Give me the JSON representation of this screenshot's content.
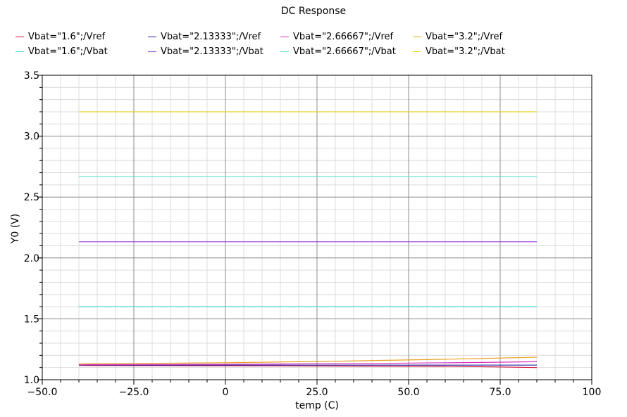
{
  "chart_data": {
    "type": "line",
    "title": "DC Response",
    "xlabel": "temp (C)",
    "ylabel": "Y0 (V)",
    "xlim": [
      -50,
      100
    ],
    "ylim": [
      1.0,
      3.5
    ],
    "x_major_ticks": [
      -50,
      -25,
      0,
      25,
      50,
      75,
      100
    ],
    "x_tick_labels": [
      "−50.0",
      "−25.0",
      "0",
      "25.0",
      "50.0",
      "75.0",
      "100"
    ],
    "y_major_ticks": [
      1.0,
      1.5,
      2.0,
      2.5,
      3.0,
      3.5
    ],
    "y_tick_labels": [
      "1.0",
      "1.5",
      "2.0",
      "2.5",
      "3.0",
      "3.5"
    ],
    "grid": true,
    "legend_position": "top",
    "series": [
      {
        "name": "Vbat=\"1.6\";/Vref",
        "color": "#d4143c",
        "x": [
          -40,
          10,
          60,
          75,
          85
        ],
        "y": [
          1.117,
          1.114,
          1.11,
          1.105,
          1.1
        ]
      },
      {
        "name": "Vbat=\"1.6\";/Vbat",
        "color": "#40d8cc",
        "x": [
          -40,
          85
        ],
        "y": [
          1.6,
          1.6
        ]
      },
      {
        "name": "Vbat=\"2.13333\";/Vref",
        "color": "#2020a8",
        "x": [
          -40,
          85
        ],
        "y": [
          1.12,
          1.12
        ]
      },
      {
        "name": "Vbat=\"2.13333\";/Vbat",
        "color": "#9040d8",
        "x": [
          -40,
          85
        ],
        "y": [
          2.133,
          2.133
        ]
      },
      {
        "name": "Vbat=\"2.66667\";/Vref",
        "color": "#d830c0",
        "x": [
          -40,
          10,
          40,
          70,
          85
        ],
        "y": [
          1.123,
          1.128,
          1.134,
          1.142,
          1.148
        ]
      },
      {
        "name": "Vbat=\"2.66667\";/Vbat",
        "color": "#60e0d0",
        "x": [
          -40,
          85
        ],
        "y": [
          2.667,
          2.667
        ]
      },
      {
        "name": "Vbat=\"3.2\";/Vref",
        "color": "#e8a020",
        "x": [
          -40,
          0,
          30,
          60,
          85
        ],
        "y": [
          1.13,
          1.14,
          1.152,
          1.168,
          1.185
        ]
      },
      {
        "name": "Vbat=\"3.2\";/Vbat",
        "color": "#e8d020",
        "x": [
          -40,
          85
        ],
        "y": [
          3.2,
          3.2
        ]
      }
    ]
  }
}
